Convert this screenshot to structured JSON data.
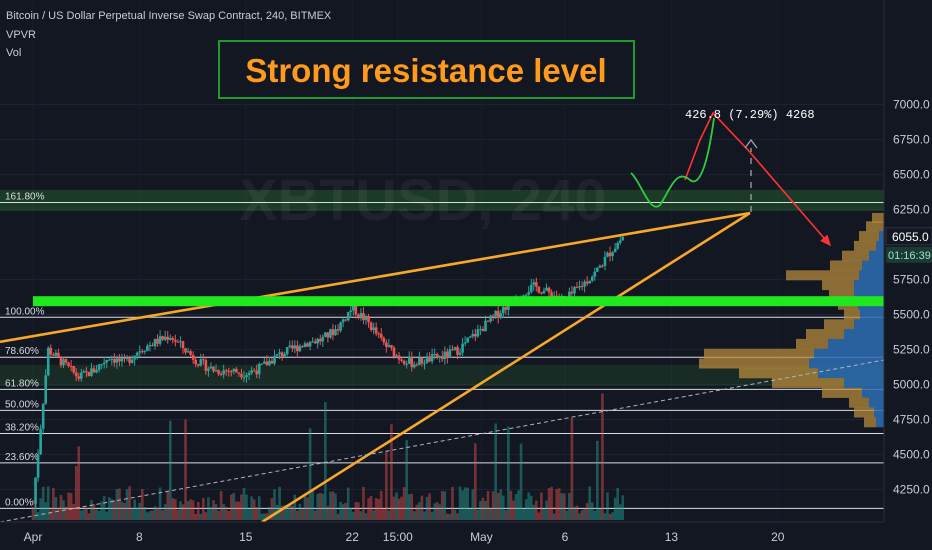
{
  "chart_data": {
    "type": "candlestick",
    "title": "Bitcoin / US Dollar Perpetual Inverse Swap Contract, 240, BITMEX",
    "indicators": [
      "VPVR",
      "Vol"
    ],
    "watermark": "XBTUSD, 240",
    "annotation_title": "Strong resistance level",
    "ylim": [
      4100,
      7150
    ],
    "y_ticks": [
      {
        "value": 4250,
        "label": "4250.0"
      },
      {
        "value": 4500,
        "label": "4500.0"
      },
      {
        "value": 4750,
        "label": "4750.0"
      },
      {
        "value": 5000,
        "label": "5000.0"
      },
      {
        "value": 5250,
        "label": "5250.0"
      },
      {
        "value": 5500,
        "label": "5500.0"
      },
      {
        "value": 5750,
        "label": "5750.0"
      },
      {
        "value": 6250,
        "label": "6250.0"
      },
      {
        "value": 6500,
        "label": "6500.0"
      },
      {
        "value": 6750,
        "label": "6750.0"
      },
      {
        "value": 7000,
        "label": "7000.0"
      }
    ],
    "last_price": {
      "value": 6055,
      "label": "6055.0"
    },
    "countdown": "01:16:39",
    "x_ticks": [
      {
        "day": 0,
        "label": "Apr"
      },
      {
        "day": 7,
        "label": "8"
      },
      {
        "day": 14,
        "label": "15"
      },
      {
        "day": 21,
        "label": "22"
      },
      {
        "day": 24,
        "label": "15:00"
      },
      {
        "day": 29.5,
        "label": "May"
      },
      {
        "day": 35,
        "label": "6"
      },
      {
        "day": 42,
        "label": "13"
      },
      {
        "day": 49,
        "label": "20"
      }
    ],
    "fib_levels": [
      {
        "label": "161.80%",
        "value": 6300
      },
      {
        "label": "100.00%",
        "value": 5480
      },
      {
        "label": "78.60%",
        "value": 5195
      },
      {
        "label": "61.80%",
        "value": 4965
      },
      {
        "label": "50.00%",
        "value": 4815
      },
      {
        "label": "38.20%",
        "value": 4650
      },
      {
        "label": "23.60%",
        "value": 4440
      },
      {
        "label": "0.00%",
        "value": 4115
      }
    ],
    "resistance_level": 5595,
    "projection_label": "426.8 (7.29%) 4268",
    "price_path": [
      [
        0,
        4150
      ],
      [
        1,
        5250
      ],
      [
        2,
        5150
      ],
      [
        3,
        5050
      ],
      [
        4,
        5100
      ],
      [
        5,
        5200
      ],
      [
        6,
        5150
      ],
      [
        7,
        5250
      ],
      [
        8,
        5300
      ],
      [
        9,
        5350
      ],
      [
        10,
        5250
      ],
      [
        11,
        5150
      ],
      [
        12,
        5100
      ],
      [
        13,
        5100
      ],
      [
        14,
        5080
      ],
      [
        15,
        5120
      ],
      [
        16,
        5200
      ],
      [
        17,
        5250
      ],
      [
        18,
        5300
      ],
      [
        19,
        5320
      ],
      [
        20,
        5400
      ],
      [
        21,
        5550
      ],
      [
        22,
        5450
      ],
      [
        23,
        5300
      ],
      [
        24,
        5200
      ],
      [
        25,
        5150
      ],
      [
        26,
        5180
      ],
      [
        27,
        5200
      ],
      [
        28,
        5250
      ],
      [
        29,
        5350
      ],
      [
        30,
        5450
      ],
      [
        31,
        5550
      ],
      [
        32,
        5650
      ],
      [
        33,
        5700
      ],
      [
        34,
        5650
      ],
      [
        35,
        5600
      ],
      [
        36,
        5700
      ],
      [
        37,
        5800
      ],
      [
        38,
        5950
      ],
      [
        38.8,
        6055
      ]
    ],
    "volume_profile": [
      {
        "price": 6190,
        "total": 12,
        "up": 0
      },
      {
        "price": 6130,
        "total": 18,
        "up": 0
      },
      {
        "price": 6060,
        "total": 25,
        "up": 5
      },
      {
        "price": 5990,
        "total": 30,
        "up": 8
      },
      {
        "price": 5920,
        "total": 42,
        "up": 15
      },
      {
        "price": 5850,
        "total": 54,
        "up": 22
      },
      {
        "price": 5780,
        "total": 98,
        "up": 25
      },
      {
        "price": 5710,
        "total": 62,
        "up": 30
      },
      {
        "price": 5640,
        "total": 55,
        "up": 30
      },
      {
        "price": 5570,
        "total": 46,
        "up": 26
      },
      {
        "price": 5500,
        "total": 40,
        "up": 24
      },
      {
        "price": 5430,
        "total": 60,
        "up": 30
      },
      {
        "price": 5360,
        "total": 78,
        "up": 40
      },
      {
        "price": 5290,
        "total": 88,
        "up": 56
      },
      {
        "price": 5220,
        "total": 180,
        "up": 70
      },
      {
        "price": 5150,
        "total": 185,
        "up": 75
      },
      {
        "price": 5080,
        "total": 145,
        "up": 66
      },
      {
        "price": 5010,
        "total": 112,
        "up": 40
      },
      {
        "price": 4940,
        "total": 62,
        "up": 22
      },
      {
        "price": 4870,
        "total": 35,
        "up": 15
      },
      {
        "price": 4800,
        "total": 30,
        "up": 10
      },
      {
        "price": 4730,
        "total": 20,
        "up": 8
      }
    ]
  },
  "colors": {
    "background": "#131722",
    "trendline": "#f7a72a",
    "resistance": "#1fe81f",
    "candle_up": "#26a69a",
    "candle_down": "#ef5350",
    "projection_up": "#ff3333",
    "projection_green": "#2ecc40",
    "title_text": "#ff9a1c",
    "profile_up": "#2d6fb3",
    "profile_down": "#b68a3c"
  }
}
